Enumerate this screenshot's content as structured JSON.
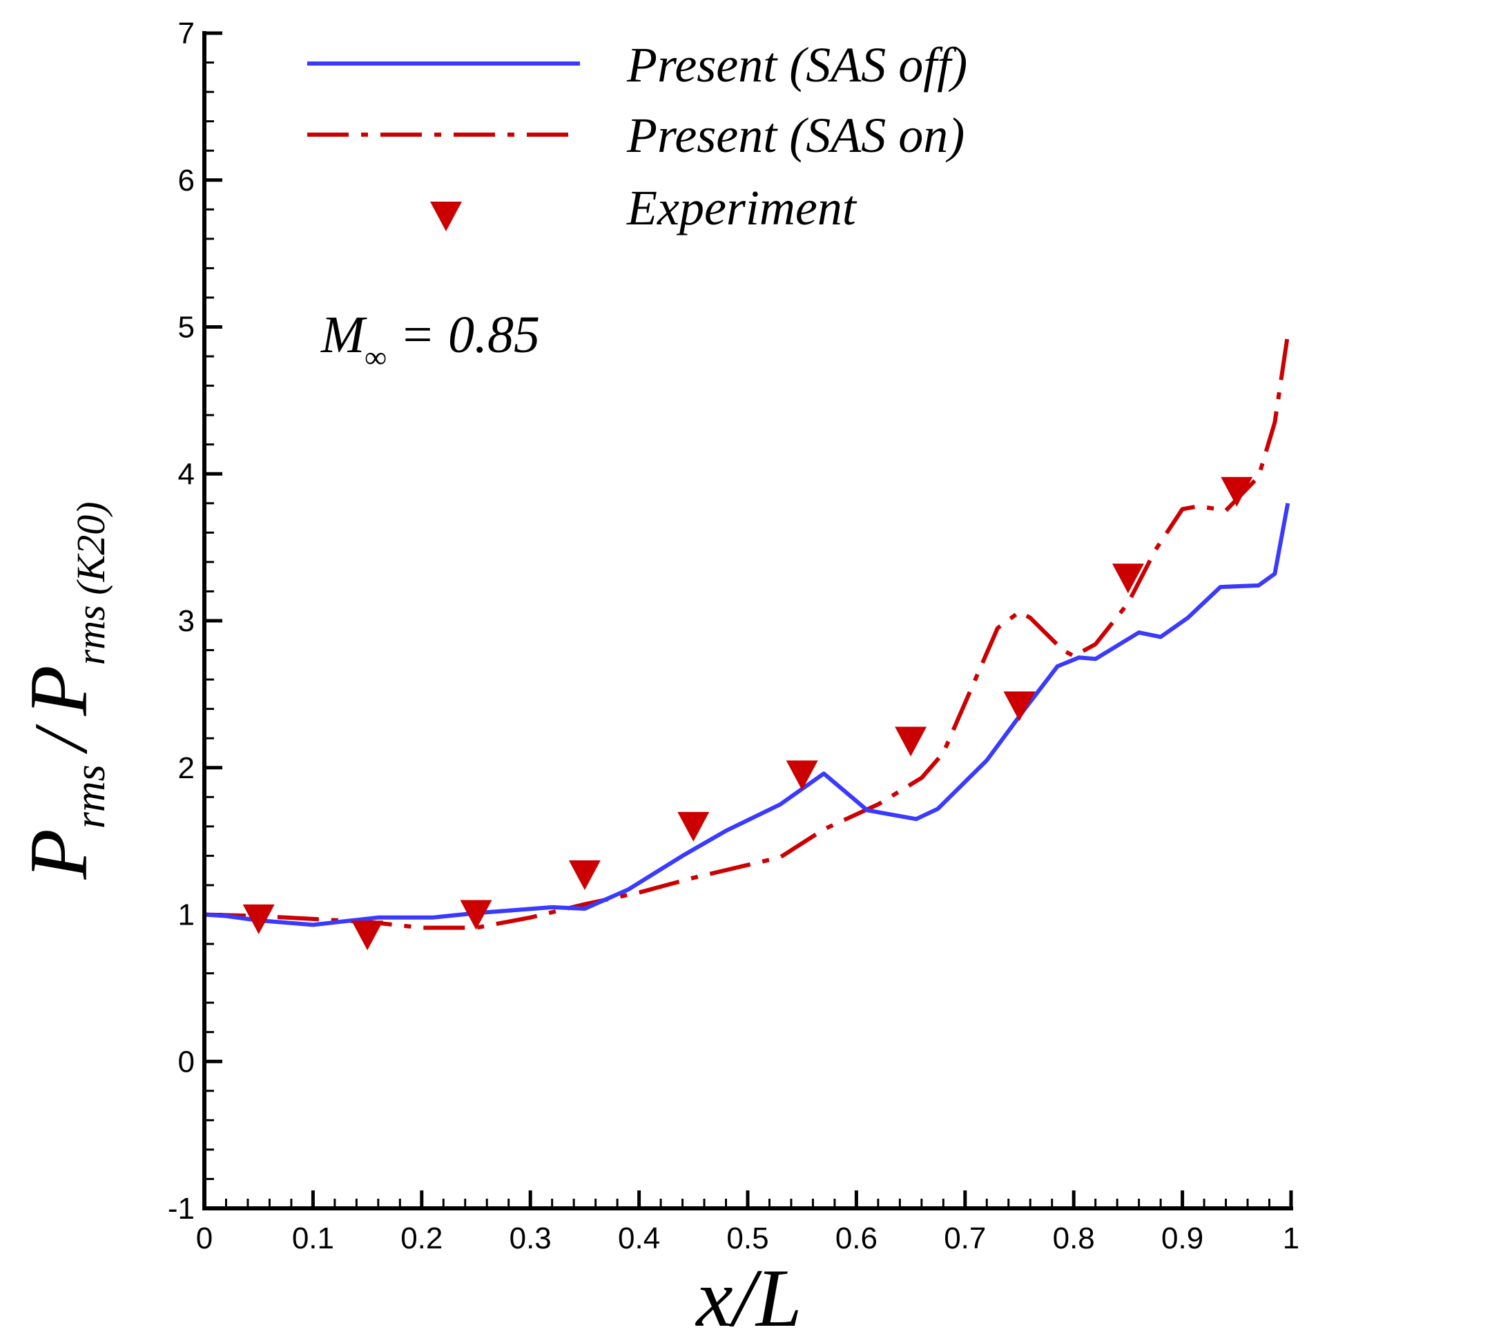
{
  "chart_data": {
    "type": "line",
    "xlabel": {
      "main": "x/L"
    },
    "ylabel": {
      "num_base": "P",
      "num_sub": "rms",
      "slash": "/",
      "den_base": "P",
      "den_sub": "rms (K20)"
    },
    "xlim": [
      0,
      1
    ],
    "ylim": [
      -1,
      7
    ],
    "x_ticks": [
      0,
      0.1,
      0.2,
      0.3,
      0.4,
      0.5,
      0.6,
      0.7,
      0.8,
      0.9,
      1
    ],
    "x_tick_labels": [
      "0",
      "0.1",
      "0.2",
      "0.3",
      "0.4",
      "0.5",
      "0.6",
      "0.7",
      "0.8",
      "0.9",
      "1"
    ],
    "y_ticks": [
      -1,
      0,
      1,
      2,
      3,
      4,
      5,
      6,
      7
    ],
    "y_tick_labels": [
      "-1",
      "0",
      "1",
      "2",
      "3",
      "4",
      "5",
      "6",
      "7"
    ],
    "grid": false,
    "legend_position": "top-left",
    "annotation": {
      "base": "M",
      "sub": "∞",
      "rest": " = 0.85"
    },
    "series": [
      {
        "name": "Present (SAS off)",
        "style": "solid",
        "color": "#3a3aff",
        "points": [
          [
            0.0,
            1.0
          ],
          [
            0.02,
            0.99
          ],
          [
            0.05,
            0.96
          ],
          [
            0.1,
            0.93
          ],
          [
            0.16,
            0.98
          ],
          [
            0.21,
            0.98
          ],
          [
            0.25,
            1.01
          ],
          [
            0.32,
            1.05
          ],
          [
            0.35,
            1.04
          ],
          [
            0.39,
            1.17
          ],
          [
            0.44,
            1.4
          ],
          [
            0.48,
            1.57
          ],
          [
            0.53,
            1.75
          ],
          [
            0.57,
            1.96
          ],
          [
            0.61,
            1.71
          ],
          [
            0.655,
            1.65
          ],
          [
            0.675,
            1.72
          ],
          [
            0.72,
            2.05
          ],
          [
            0.755,
            2.4
          ],
          [
            0.785,
            2.69
          ],
          [
            0.805,
            2.75
          ],
          [
            0.82,
            2.74
          ],
          [
            0.86,
            2.92
          ],
          [
            0.88,
            2.89
          ],
          [
            0.905,
            3.02
          ],
          [
            0.935,
            3.23
          ],
          [
            0.97,
            3.24
          ],
          [
            0.985,
            3.32
          ],
          [
            0.997,
            3.8
          ]
        ]
      },
      {
        "name": "Present (SAS on)",
        "style": "dashdot",
        "color": "#cc0000",
        "points": [
          [
            0.0,
            1.0
          ],
          [
            0.05,
            0.99
          ],
          [
            0.1,
            0.97
          ],
          [
            0.15,
            0.95
          ],
          [
            0.2,
            0.91
          ],
          [
            0.25,
            0.91
          ],
          [
            0.3,
            0.98
          ],
          [
            0.35,
            1.07
          ],
          [
            0.4,
            1.15
          ],
          [
            0.45,
            1.25
          ],
          [
            0.53,
            1.39
          ],
          [
            0.57,
            1.58
          ],
          [
            0.62,
            1.75
          ],
          [
            0.66,
            1.93
          ],
          [
            0.68,
            2.1
          ],
          [
            0.73,
            2.95
          ],
          [
            0.75,
            3.06
          ],
          [
            0.76,
            3.02
          ],
          [
            0.79,
            2.8
          ],
          [
            0.8,
            2.76
          ],
          [
            0.82,
            2.84
          ],
          [
            0.85,
            3.12
          ],
          [
            0.875,
            3.48
          ],
          [
            0.9,
            3.76
          ],
          [
            0.915,
            3.78
          ],
          [
            0.94,
            3.75
          ],
          [
            0.97,
            3.98
          ],
          [
            0.985,
            4.35
          ],
          [
            0.997,
            4.95
          ]
        ]
      },
      {
        "name": "Experiment",
        "style": "marker",
        "marker": "down-triangle",
        "color": "#cc0000",
        "points": [
          [
            0.05,
            0.97
          ],
          [
            0.15,
            0.86
          ],
          [
            0.25,
            1.0
          ],
          [
            0.35,
            1.27
          ],
          [
            0.45,
            1.6
          ],
          [
            0.55,
            1.95
          ],
          [
            0.65,
            2.18
          ],
          [
            0.75,
            2.42
          ],
          [
            0.85,
            3.29
          ],
          [
            0.95,
            3.88
          ]
        ]
      }
    ]
  }
}
